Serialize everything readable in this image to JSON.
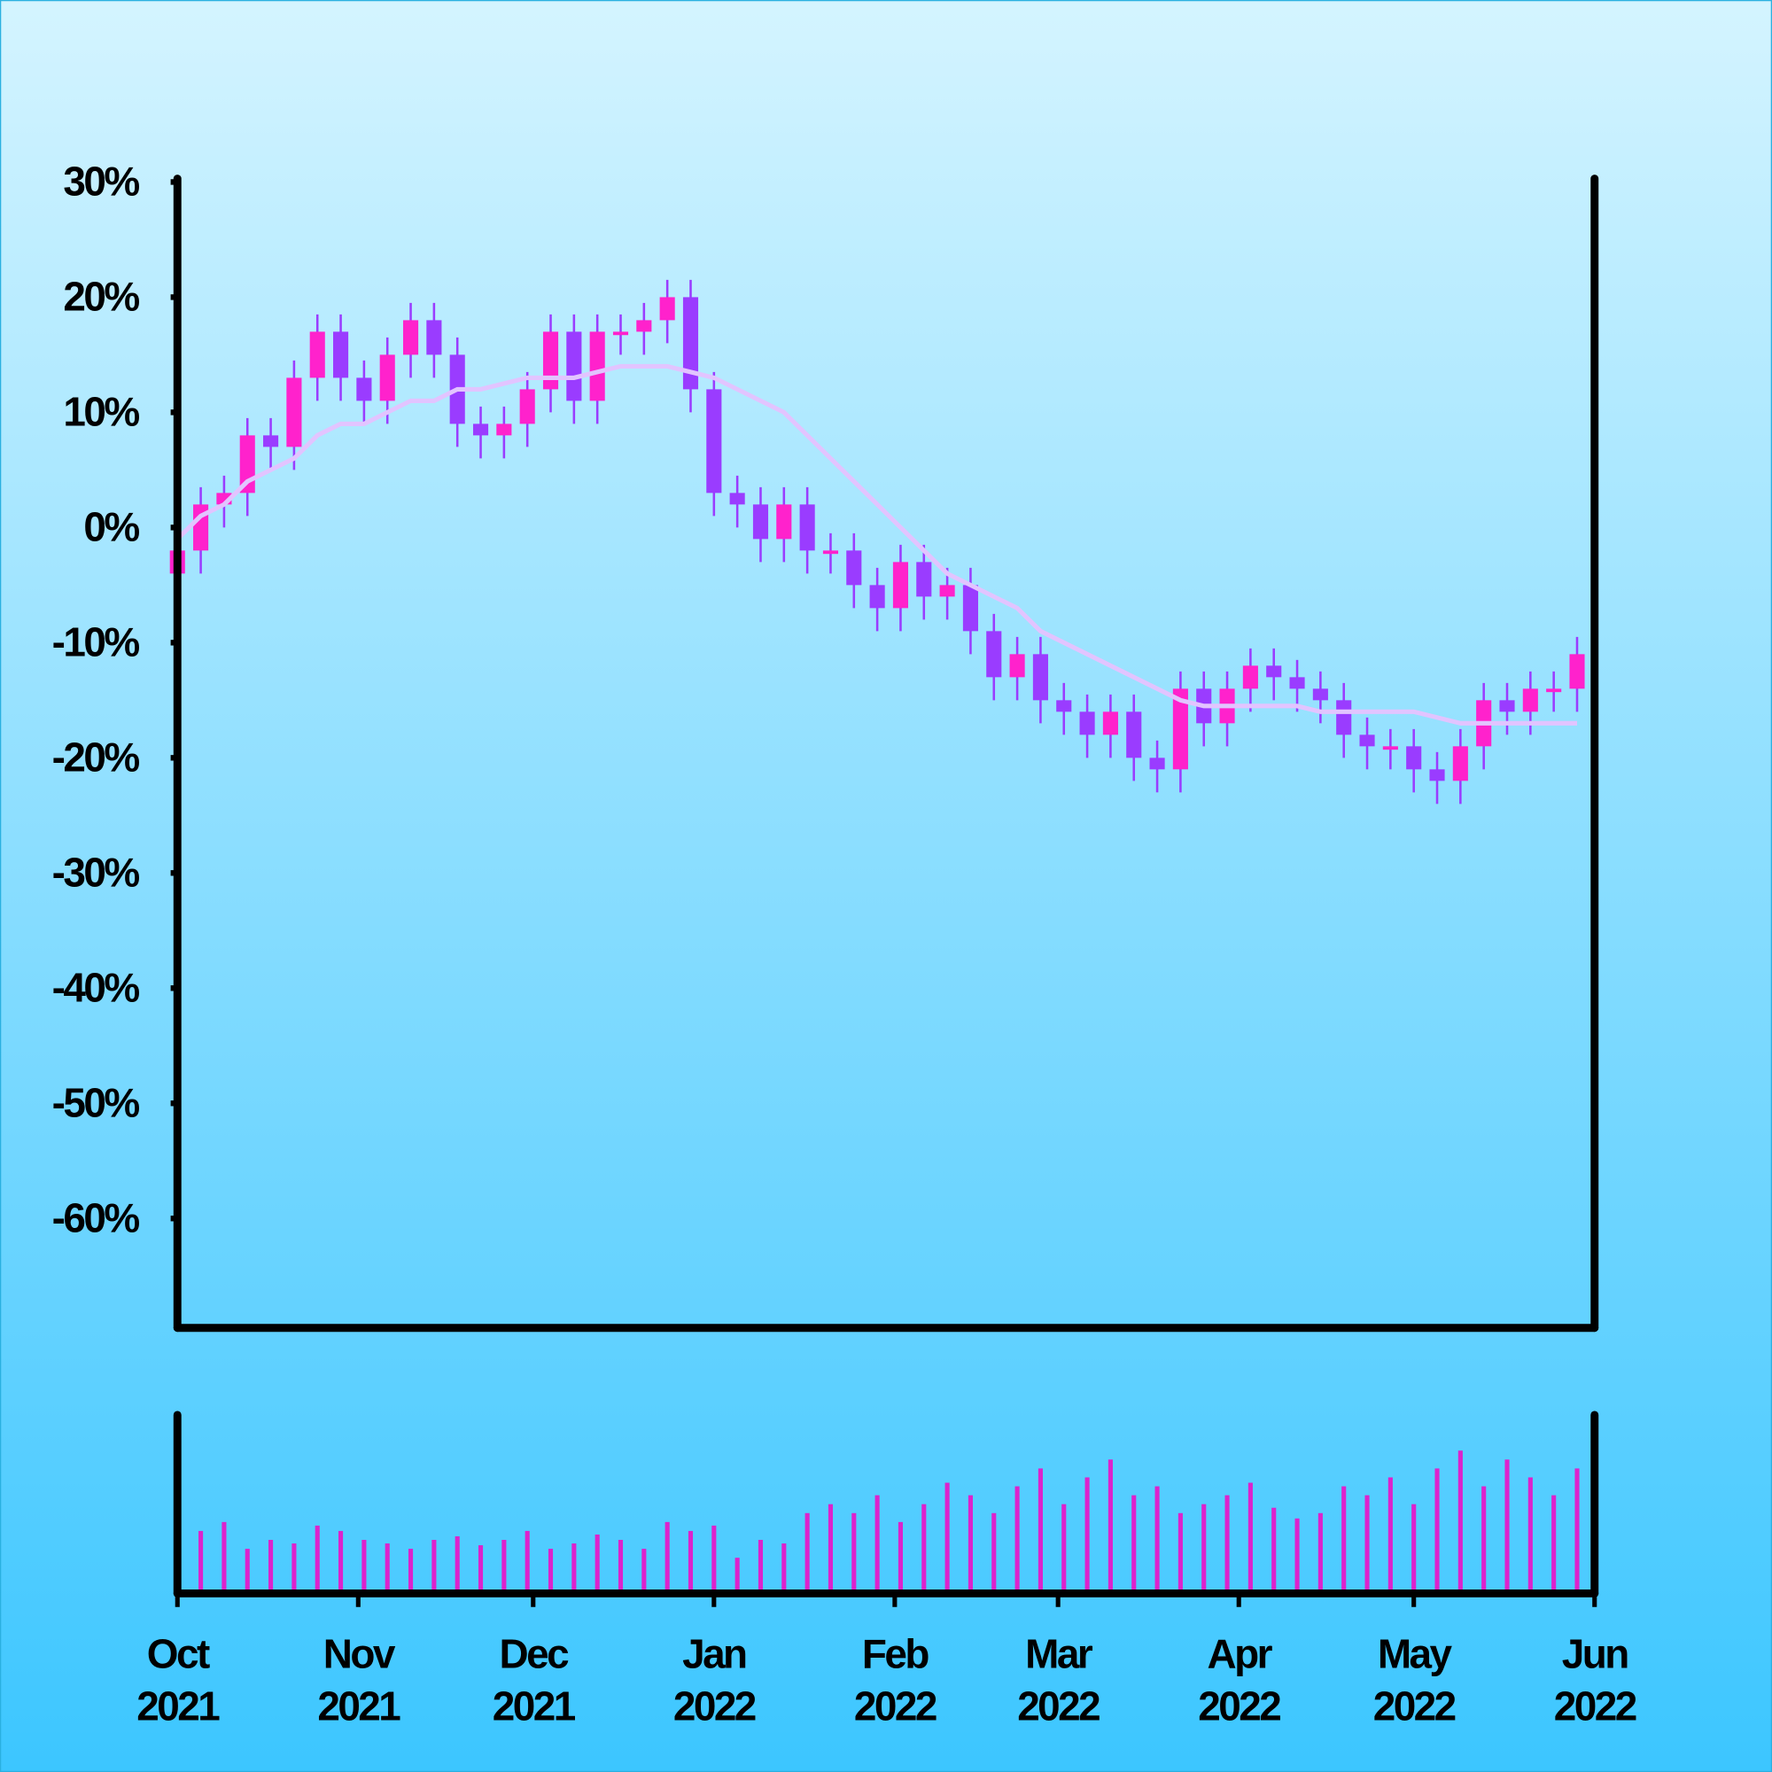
{
  "chart_data": {
    "type": "candlestick",
    "x": [
      "2021-10-01",
      "2021-10-05",
      "2021-10-09",
      "2021-10-13",
      "2021-10-17",
      "2021-10-21",
      "2021-10-25",
      "2021-10-29",
      "2021-11-02",
      "2021-11-06",
      "2021-11-10",
      "2021-11-14",
      "2021-11-18",
      "2021-11-22",
      "2021-11-26",
      "2021-11-30",
      "2021-12-04",
      "2021-12-08",
      "2021-12-12",
      "2021-12-16",
      "2021-12-20",
      "2021-12-24",
      "2021-12-28",
      "2022-01-01",
      "2022-01-05",
      "2022-01-09",
      "2022-01-13",
      "2022-01-17",
      "2022-01-21",
      "2022-01-25",
      "2022-01-29",
      "2022-02-02",
      "2022-02-06",
      "2022-02-10",
      "2022-02-14",
      "2022-02-18",
      "2022-02-22",
      "2022-02-26",
      "2022-03-02",
      "2022-03-06",
      "2022-03-10",
      "2022-03-14",
      "2022-03-18",
      "2022-03-22",
      "2022-03-26",
      "2022-03-30",
      "2022-04-03",
      "2022-04-07",
      "2022-04-11",
      "2022-04-15",
      "2022-04-19",
      "2022-04-23",
      "2022-04-27",
      "2022-05-01",
      "2022-05-05",
      "2022-05-09",
      "2022-05-13",
      "2022-05-17",
      "2022-05-21",
      "2022-05-25",
      "2022-05-29"
    ],
    "open": [
      -4,
      -2,
      2,
      3,
      8,
      7,
      13,
      17,
      13,
      11,
      15,
      18,
      15,
      9,
      8,
      9,
      12,
      17,
      11,
      17,
      17,
      18,
      20,
      12,
      3,
      2,
      -1,
      2,
      -2,
      -2,
      -5,
      -7,
      -3,
      -6,
      -5,
      -9,
      -13,
      -11,
      -15,
      -16,
      -18,
      -16,
      -20,
      -21,
      -14,
      -17,
      -14,
      -12,
      -13,
      -14,
      -15,
      -18,
      -19,
      -19,
      -21,
      -22,
      -19,
      -15,
      -16,
      -14,
      -14
    ],
    "high": [
      -0.5,
      3.5,
      4.5,
      9.5,
      9.5,
      14.5,
      18.5,
      18.5,
      14.5,
      16.5,
      19.5,
      19.5,
      16.5,
      10.5,
      10.5,
      13.5,
      18.5,
      18.5,
      18.5,
      18.5,
      19.5,
      21.5,
      21.5,
      13.5,
      4.5,
      3.5,
      3.5,
      3.5,
      -0.5,
      -0.5,
      -3.5,
      -1.5,
      -1.5,
      -3.5,
      -3.5,
      -7.5,
      -9.5,
      -9.5,
      -13.5,
      -14.5,
      -14.5,
      -14.5,
      -18.5,
      -12.5,
      -12.5,
      -12.5,
      -10.5,
      -10.5,
      -11.5,
      -12.5,
      -13.5,
      -16.5,
      -17.5,
      -17.5,
      -19.5,
      -17.5,
      -13.5,
      -13.5,
      -12.5,
      -12.5,
      -9.5
    ],
    "low": [
      -6,
      -4,
      0,
      1,
      5,
      5,
      11,
      11,
      9,
      9,
      13,
      13,
      7,
      6,
      6,
      7,
      10,
      9,
      9,
      15,
      15,
      16,
      10,
      1,
      0,
      -3,
      -3,
      -4,
      -4,
      -7,
      -9,
      -9,
      -8,
      -8,
      -11,
      -15,
      -15,
      -17,
      -18,
      -20,
      -20,
      -22,
      -23,
      -23,
      -19,
      -19,
      -16,
      -15,
      -16,
      -17,
      -20,
      -21,
      -21,
      -23,
      -24,
      -24,
      -21,
      -18,
      -18,
      -16,
      -16
    ],
    "close": [
      -2,
      2,
      3,
      8,
      7,
      13,
      17,
      13,
      11,
      15,
      18,
      15,
      9,
      8,
      9,
      12,
      17,
      11,
      17,
      17,
      18,
      20,
      12,
      3,
      2,
      -1,
      2,
      -2,
      -2,
      -5,
      -7,
      -3,
      -6,
      -5,
      -9,
      -13,
      -11,
      -15,
      -16,
      -18,
      -16,
      -20,
      -21,
      -14,
      -17,
      -14,
      -12,
      -13,
      -14,
      -15,
      -18,
      -19,
      -19,
      -21,
      -22,
      -19,
      -15,
      -16,
      -14,
      -14,
      -11
    ],
    "up_color": "#ff22cc",
    "down_color": "#9a3cff",
    "wick_color": "#9a3cff",
    "ma": {
      "color": "#e2c4ff",
      "values": [
        -1,
        1,
        2,
        4,
        5,
        6,
        8,
        9,
        9,
        10,
        11,
        11,
        12,
        12,
        12.5,
        13,
        13,
        13,
        13.5,
        14,
        14,
        14,
        13.5,
        13,
        12,
        11,
        10,
        8,
        6,
        4,
        2,
        0,
        -2,
        -4,
        -5,
        -6,
        -7,
        -9,
        -10,
        -11,
        -12,
        -13,
        -14,
        -15,
        -15.5,
        -15.5,
        -15.5,
        -15.5,
        -15.5,
        -16,
        -16,
        -16,
        -16,
        -16,
        -16.5,
        -17,
        -17,
        -17,
        -17,
        -17,
        -17
      ]
    },
    "volume": {
      "color": "#dd22cc",
      "ylim": [
        0,
        100
      ],
      "values": [
        30,
        35,
        40,
        25,
        30,
        28,
        38,
        35,
        30,
        28,
        25,
        30,
        32,
        27,
        30,
        35,
        25,
        28,
        33,
        30,
        25,
        40,
        35,
        38,
        20,
        30,
        28,
        45,
        50,
        45,
        55,
        40,
        50,
        62,
        55,
        45,
        60,
        70,
        50,
        65,
        75,
        55,
        60,
        45,
        50,
        55,
        62,
        48,
        42,
        45,
        60,
        55,
        65,
        50,
        70,
        80,
        60,
        75,
        65,
        55,
        70
      ]
    },
    "ylim": [
      -69.5,
      30.3
    ],
    "yticks": [
      {
        "value": 30,
        "label": "30%"
      },
      {
        "value": 20,
        "label": "20%"
      },
      {
        "value": 10,
        "label": "10%"
      },
      {
        "value": 0,
        "label": "0%"
      },
      {
        "value": -10,
        "label": "-10%"
      },
      {
        "value": -20,
        "label": "-20%"
      },
      {
        "value": -30,
        "label": "-30%"
      },
      {
        "value": -40,
        "label": "-40%"
      },
      {
        "value": -50,
        "label": "-50%"
      },
      {
        "value": -60,
        "label": "-60%"
      }
    ],
    "xlim": [
      "2021-10-01",
      "2022-06-01"
    ],
    "xticks": [
      {
        "value": "2021-10-01",
        "label": [
          "Oct",
          "2021"
        ]
      },
      {
        "value": "2021-11-01",
        "label": [
          "Nov",
          "2021"
        ]
      },
      {
        "value": "2021-12-01",
        "label": [
          "Dec",
          "2021"
        ]
      },
      {
        "value": "2022-01-01",
        "label": [
          "Jan",
          "2022"
        ]
      },
      {
        "value": "2022-02-01",
        "label": [
          "Feb",
          "2022"
        ]
      },
      {
        "value": "2022-03-01",
        "label": [
          "Mar",
          "2022"
        ]
      },
      {
        "value": "2022-04-01",
        "label": [
          "Apr",
          "2022"
        ]
      },
      {
        "value": "2022-05-01",
        "label": [
          "May",
          "2022"
        ]
      },
      {
        "value": "2022-06-01",
        "label": [
          "Jun",
          "2022"
        ]
      }
    ]
  }
}
